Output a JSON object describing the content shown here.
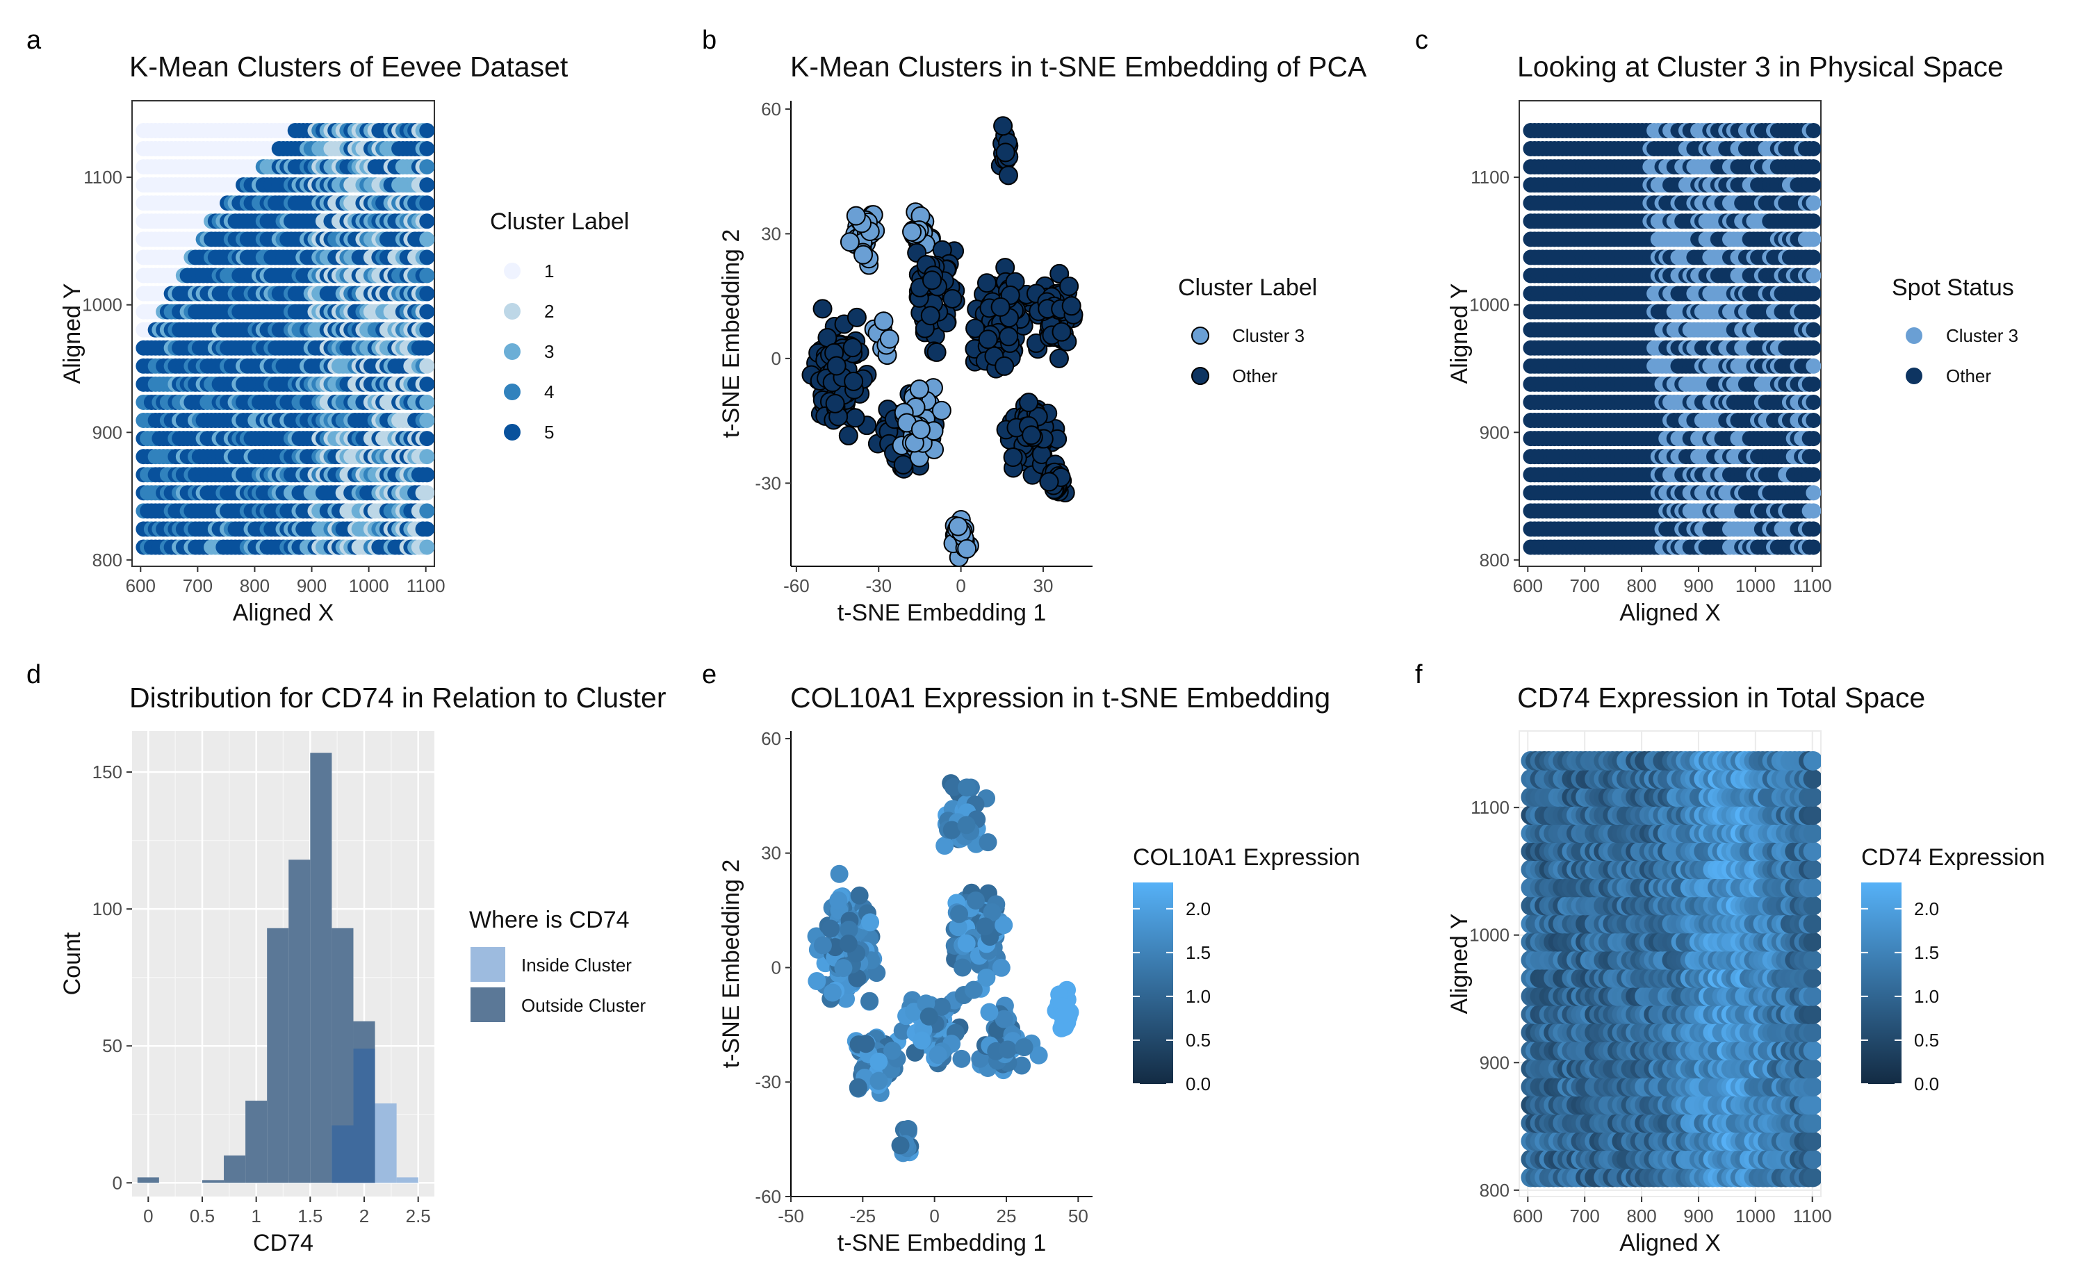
{
  "colors": {
    "blues": [
      "#eff3ff",
      "#bdd7e7",
      "#6baed6",
      "#3182bd",
      "#08519c"
    ],
    "cluster3": "#6a9fd4",
    "other": "#0d3461",
    "inside": "#9dbbdf",
    "outside": "#5b7897",
    "grad_low": "#132b43",
    "grad_high": "#56b1f7",
    "panel_grey": "#ebebeb"
  },
  "chart_data": [
    {
      "tag": "a",
      "type": "scatter",
      "title": "K-Mean Clusters of Eevee Dataset",
      "xlabel": "Aligned X",
      "ylabel": "Aligned Y",
      "xlim": [
        585,
        1115
      ],
      "ylim": [
        795,
        1160
      ],
      "xticks": [
        600,
        700,
        800,
        900,
        1000,
        1100
      ],
      "yticks": [
        800,
        900,
        1000,
        1100
      ],
      "grid": false,
      "legend_title": "Cluster Label",
      "legend": [
        "1",
        "2",
        "3",
        "4",
        "5"
      ],
      "legend_position": "right",
      "pattern": "spots on rows y=810..1150 (step ~14); cluster 1 occupies left wedge at top, cluster 5 dominates middle, clusters 2-4 mixed on right"
    },
    {
      "tag": "b",
      "type": "scatter",
      "title": "K-Mean Clusters in t-SNE Embedding of PCA",
      "xlabel": "t-SNE Embedding 1",
      "ylabel": "t-SNE Embedding 2",
      "xlim": [
        -62,
        48
      ],
      "ylim": [
        -50,
        62
      ],
      "xticks": [
        -60,
        -30,
        0,
        30
      ],
      "yticks": [
        -30,
        0,
        30,
        60
      ],
      "grid": false,
      "legend_title": "Cluster Label",
      "legend": [
        "Cluster 3",
        "Other"
      ],
      "legend_position": "right"
    },
    {
      "tag": "c",
      "type": "scatter",
      "title": "Looking at Cluster 3 in Physical Space",
      "xlabel": "Aligned X",
      "ylabel": "Aligned Y",
      "xlim": [
        585,
        1115
      ],
      "ylim": [
        795,
        1160
      ],
      "xticks": [
        600,
        700,
        800,
        900,
        1000,
        1100
      ],
      "yticks": [
        800,
        900,
        1000,
        1100
      ],
      "grid": false,
      "legend_title": "Spot Status",
      "legend": [
        "Cluster 3",
        "Other"
      ],
      "legend_position": "right"
    },
    {
      "tag": "d",
      "type": "bar",
      "title": "Distribution for CD74 in Relation to Cluster",
      "xlabel": "CD74",
      "ylabel": "Count",
      "xlim": [
        -0.15,
        2.65
      ],
      "ylim": [
        -5,
        165
      ],
      "xticks": [
        0.0,
        0.5,
        1.0,
        1.5,
        2.0,
        2.5
      ],
      "yticks": [
        0,
        50,
        100,
        150
      ],
      "grid": true,
      "bin_width": 0.2,
      "bin_starts": [
        -0.1,
        0.1,
        0.3,
        0.5,
        0.7,
        0.9,
        1.1,
        1.3,
        1.5,
        1.7,
        1.9,
        2.1,
        2.3
      ],
      "series": [
        {
          "name": "Inside Cluster",
          "values": [
            0,
            0,
            0,
            0,
            0,
            0,
            0,
            0,
            0,
            0,
            0,
            29,
            2
          ]
        },
        {
          "name": "Outside Cluster",
          "values": [
            2,
            0,
            0,
            1,
            10,
            30,
            93,
            118,
            157,
            93,
            59,
            0,
            0
          ]
        },
        {
          "name": "overlap",
          "values": [
            0,
            0,
            0,
            0,
            0,
            0,
            0,
            0,
            0,
            21,
            49,
            0,
            0
          ]
        }
      ],
      "legend_title": "Where is CD74",
      "legend": [
        "Inside Cluster",
        "Outside Cluster"
      ],
      "legend_position": "right"
    },
    {
      "tag": "e",
      "type": "scatter",
      "title": "COL10A1 Expression in t-SNE Embedding",
      "xlabel": "t-SNE Embedding 1",
      "ylabel": "t-SNE Embedding 2",
      "xlim": [
        -50,
        55
      ],
      "ylim": [
        -60,
        62
      ],
      "xticks": [
        -50,
        -25,
        0,
        25,
        50
      ],
      "yticks": [
        -60,
        -30,
        0,
        30,
        60
      ],
      "grid": false,
      "legend_title": "COL10A1 Expression",
      "colorbar": {
        "min": 0.0,
        "max": 2.3,
        "ticks": [
          "0.0",
          "0.5",
          "1.0",
          "1.5",
          "2.0"
        ]
      },
      "legend_position": "right"
    },
    {
      "tag": "f",
      "type": "scatter",
      "title": "CD74 Expression in Total Space",
      "xlabel": "Aligned X",
      "ylabel": "Aligned Y",
      "xlim": [
        585,
        1115
      ],
      "ylim": [
        795,
        1160
      ],
      "xticks": [
        600,
        700,
        800,
        900,
        1000,
        1100
      ],
      "yticks": [
        800,
        900,
        1000,
        1100
      ],
      "grid": true,
      "legend_title": "CD74 Expression",
      "colorbar": {
        "min": 0.0,
        "max": 2.3,
        "ticks": [
          "0.0",
          "0.5",
          "1.0",
          "1.5",
          "2.0"
        ]
      },
      "legend_position": "right"
    }
  ]
}
